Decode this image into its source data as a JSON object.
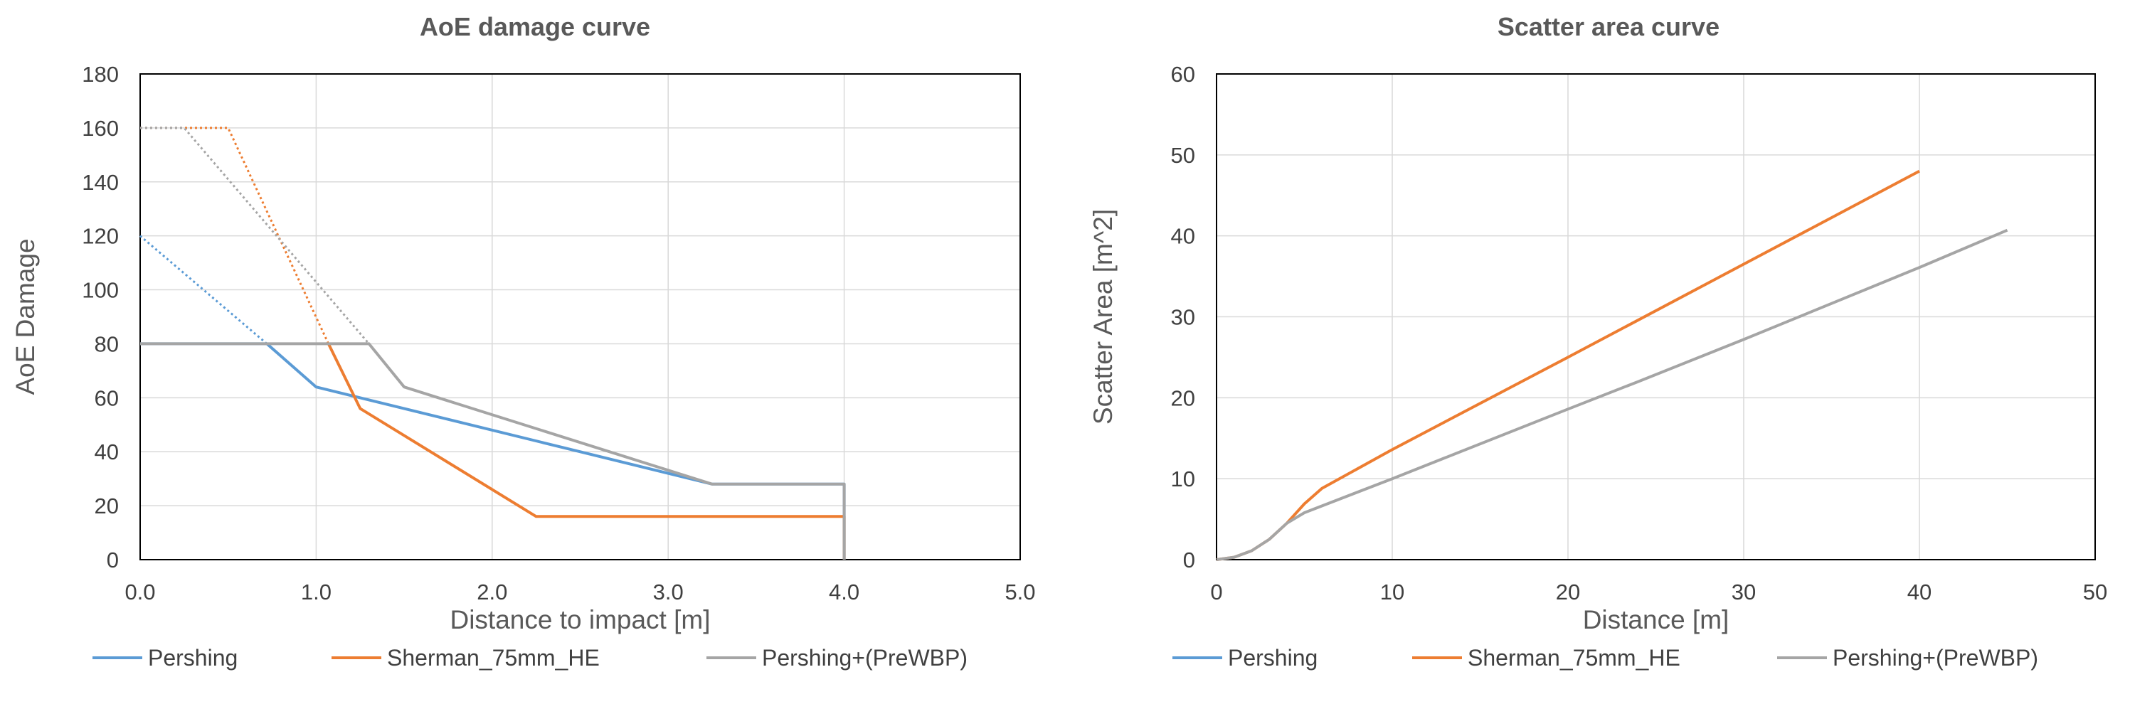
{
  "chart_data": [
    {
      "type": "line",
      "title": "AoE damage curve",
      "xlabel": "Distance to impact [m]",
      "ylabel": "AoE Damage",
      "xlim": [
        0,
        5
      ],
      "ylim": [
        0,
        180
      ],
      "xticks": [
        0,
        1,
        2,
        3,
        4,
        5
      ],
      "xtick_labels": [
        "0.0",
        "1.0",
        "2.0",
        "3.0",
        "4.0",
        "5.0"
      ],
      "yticks": [
        0,
        20,
        40,
        60,
        80,
        100,
        120,
        140,
        160,
        180
      ],
      "ytick_labels": [
        "0",
        "20",
        "40",
        "60",
        "80",
        "100",
        "120",
        "140",
        "160",
        "180"
      ],
      "grid": true,
      "legend_position": "bottom",
      "series": [
        {
          "name": "Pershing",
          "color": "#5B9BD5",
          "style": "solid",
          "x": [
            0,
            0.72,
            1.0,
            3.25,
            4.0,
            4.0
          ],
          "y": [
            80,
            80,
            64,
            28,
            28,
            0
          ]
        },
        {
          "name": "",
          "color": "#5B9BD5",
          "style": "dotted",
          "x": [
            0,
            0.72
          ],
          "y": [
            120,
            80
          ]
        },
        {
          "name": "Sherman_75mm_HE",
          "color": "#ED7D31",
          "style": "solid",
          "x": [
            1.07,
            1.25,
            2.25,
            4.0,
            4.0
          ],
          "y": [
            80,
            56,
            16,
            16,
            0
          ]
        },
        {
          "name": "",
          "color": "#ED7D31",
          "style": "dotted",
          "x": [
            0,
            0.5,
            1.07
          ],
          "y": [
            160,
            160,
            80
          ]
        },
        {
          "name": "Pershing+(PreWBP)",
          "color": "#A5A5A5",
          "style": "solid",
          "x": [
            0,
            1.3,
            1.5,
            3.25,
            4.0,
            4.0
          ],
          "y": [
            80,
            80,
            64,
            28,
            28,
            0
          ]
        },
        {
          "name": "",
          "color": "#A5A5A5",
          "style": "dotted",
          "x": [
            0,
            0.25,
            1.3
          ],
          "y": [
            160,
            160,
            80
          ]
        }
      ]
    },
    {
      "type": "line",
      "title": "Scatter area curve",
      "xlabel": "Distance [m]",
      "ylabel": "Scatter Area [m^2]",
      "xlim": [
        0,
        50
      ],
      "ylim": [
        0,
        60
      ],
      "xticks": [
        0,
        10,
        20,
        30,
        40,
        50
      ],
      "xtick_labels": [
        "0",
        "10",
        "20",
        "30",
        "40",
        "50"
      ],
      "yticks": [
        0,
        10,
        20,
        30,
        40,
        50,
        60
      ],
      "ytick_labels": [
        "0",
        "10",
        "20",
        "30",
        "40",
        "50",
        "60"
      ],
      "grid": true,
      "legend_position": "bottom",
      "series": [
        {
          "name": "Pershing",
          "color": "#5B9BD5",
          "style": "solid",
          "x": [],
          "y": []
        },
        {
          "name": "Sherman_75mm_HE",
          "color": "#ED7D31",
          "style": "solid",
          "x": [
            0,
            1,
            2,
            3,
            4,
            5,
            6,
            10,
            20,
            30,
            40
          ],
          "y": [
            0,
            0.3,
            1.1,
            2.5,
            4.5,
            6.9,
            8.8,
            13.6,
            25,
            36.5,
            48
          ]
        },
        {
          "name": "Pershing+(PreWBP)",
          "color": "#A5A5A5",
          "style": "solid",
          "x": [
            0,
            1,
            2,
            3,
            4,
            5,
            10,
            20,
            24,
            30,
            40,
            45
          ],
          "y": [
            0,
            0.3,
            1.1,
            2.5,
            4.5,
            5.8,
            10,
            18.6,
            22,
            27.2,
            36.1,
            40.7
          ]
        }
      ]
    }
  ]
}
